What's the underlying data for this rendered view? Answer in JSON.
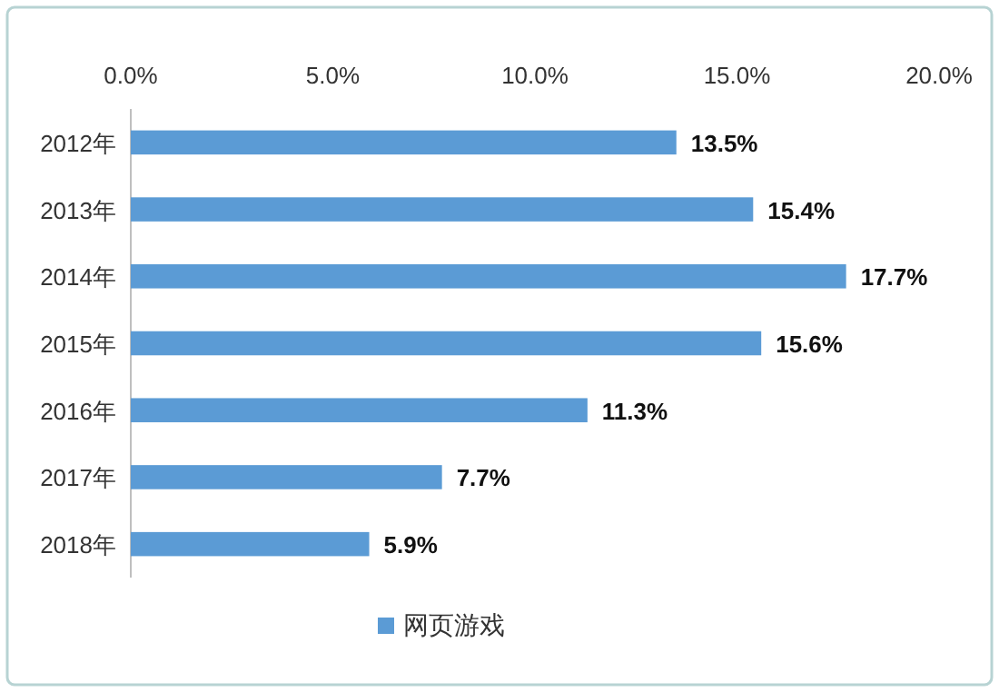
{
  "chart_data": {
    "type": "bar",
    "orientation": "horizontal",
    "categories": [
      "2012年",
      "2013年",
      "2014年",
      "2015年",
      "2016年",
      "2017年",
      "2018年"
    ],
    "series": [
      {
        "name": "网页游戏",
        "color": "#5b9bd5",
        "values": [
          13.5,
          15.4,
          17.7,
          15.6,
          11.3,
          7.7,
          5.9
        ],
        "value_labels": [
          "13.5%",
          "15.4%",
          "17.7%",
          "15.6%",
          "11.3%",
          "7.7%",
          "5.9%"
        ]
      }
    ],
    "xlim": [
      0,
      20
    ],
    "xticks": [
      {
        "value": 0,
        "label": "0.0%"
      },
      {
        "value": 5,
        "label": "5.0%"
      },
      {
        "value": 10,
        "label": "10.0%"
      },
      {
        "value": 15,
        "label": "15.0%"
      },
      {
        "value": 20,
        "label": "20.0%"
      }
    ],
    "legend": "bottom",
    "grid": false
  }
}
